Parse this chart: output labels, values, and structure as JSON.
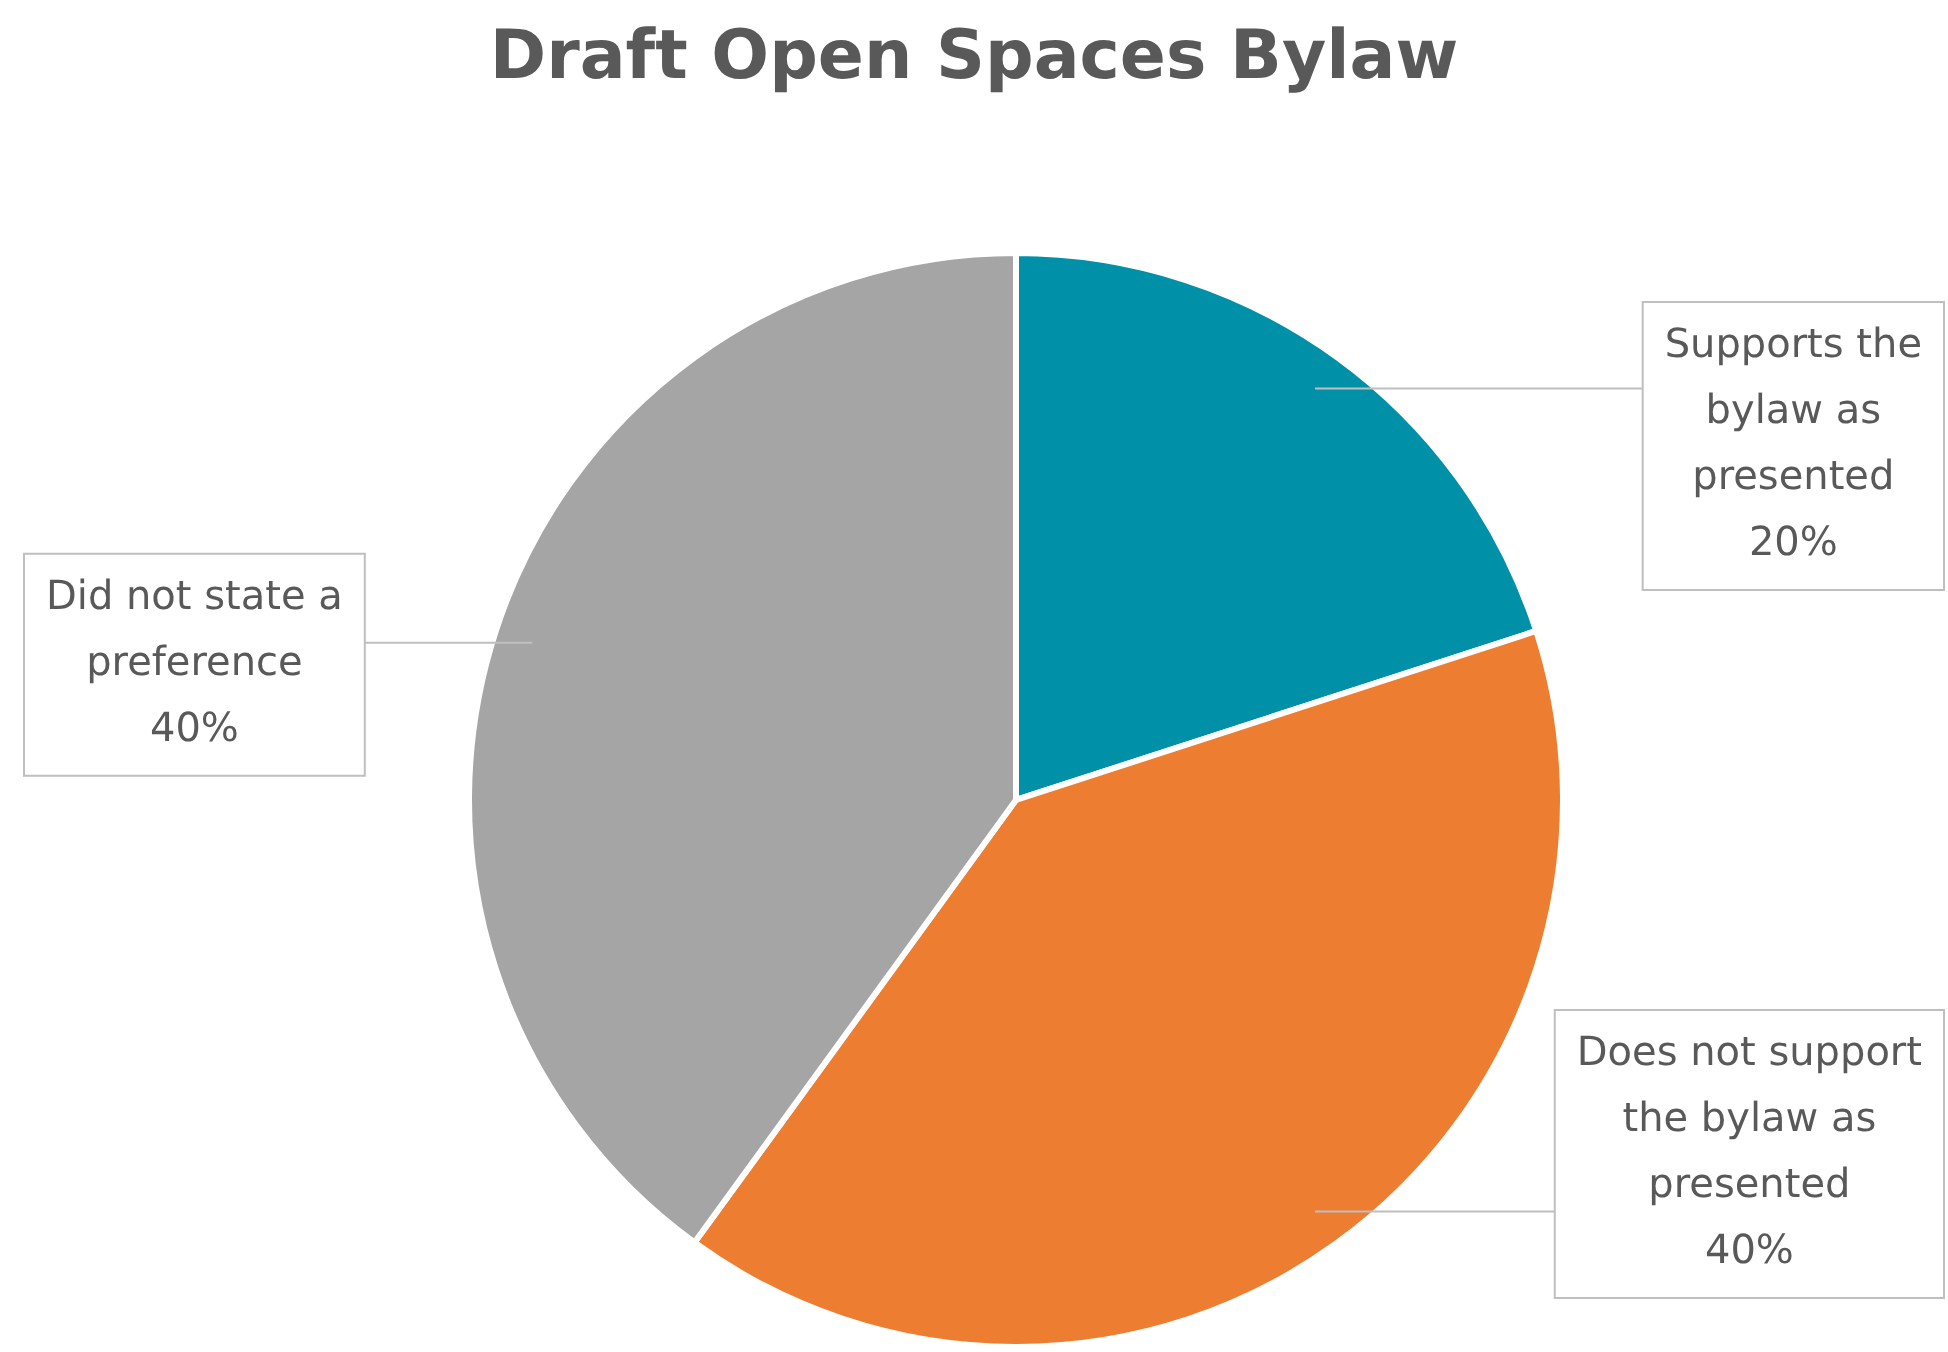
{
  "chart_data": {
    "type": "pie",
    "title": "Draft Open Spaces Bylaw",
    "categories": [
      "Supports the bylaw as presented",
      "Does not support the bylaw as presented",
      "Did not state a preference"
    ],
    "values": [
      20,
      40,
      40
    ],
    "colors": [
      "#0090a8",
      "#ed7d31",
      "#a5a5a5"
    ],
    "value_labels": [
      "20%",
      "40%",
      "40%"
    ],
    "legend": false
  }
}
